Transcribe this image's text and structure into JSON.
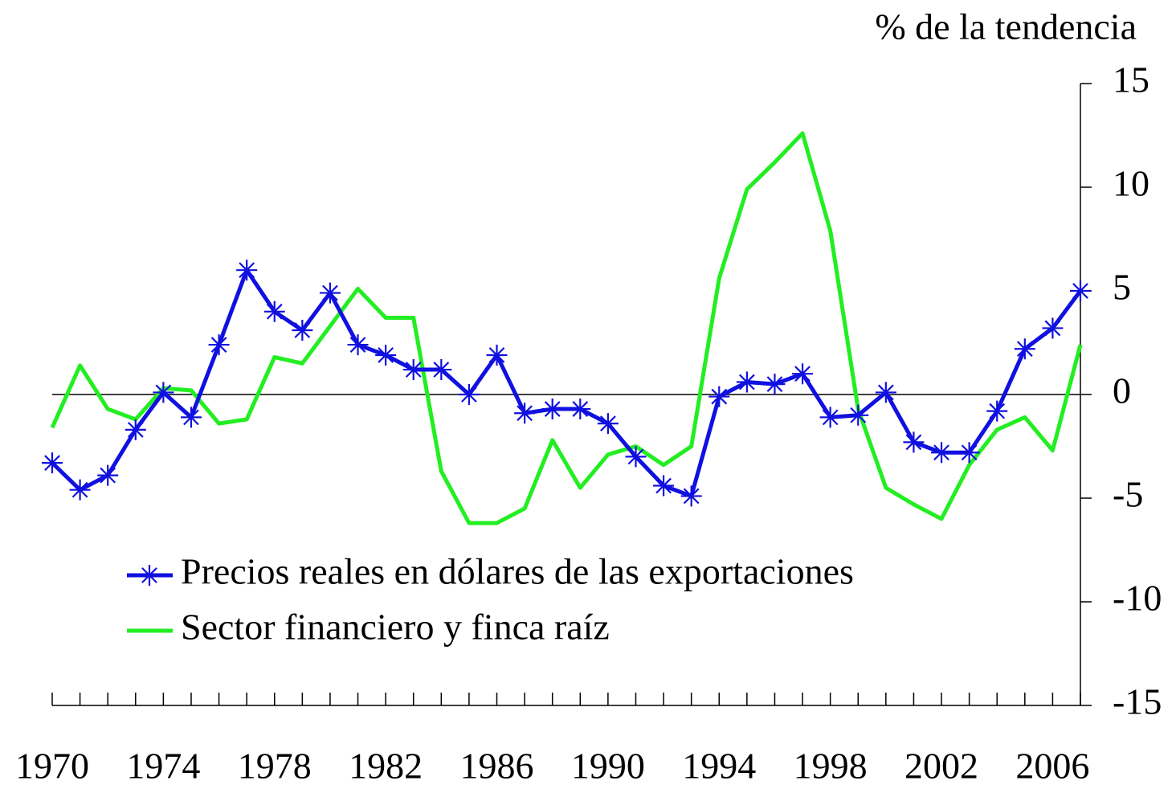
{
  "chart_data": {
    "type": "line",
    "y_axis_label": "% de la tendencia",
    "x": [
      1970,
      1971,
      1972,
      1973,
      1974,
      1975,
      1976,
      1977,
      1978,
      1979,
      1980,
      1981,
      1982,
      1983,
      1984,
      1985,
      1986,
      1987,
      1988,
      1989,
      1990,
      1991,
      1992,
      1993,
      1994,
      1995,
      1996,
      1997,
      1998,
      1999,
      2000,
      2001,
      2002,
      2003,
      2004,
      2005,
      2006,
      2007
    ],
    "series": [
      {
        "name": "Precios reales en dólares de las exportaciones",
        "color": "#1010e0",
        "marker": "asterisk",
        "values": [
          -3.3,
          -4.6,
          -3.9,
          -1.7,
          0.1,
          -1.1,
          2.4,
          6.0,
          4.0,
          3.1,
          4.9,
          2.4,
          1.9,
          1.2,
          1.2,
          0.0,
          1.9,
          -0.9,
          -0.7,
          -0.7,
          -1.4,
          -3.0,
          -4.4,
          -4.9,
          -0.1,
          0.6,
          0.5,
          1.0,
          -1.1,
          -1.0,
          0.1,
          -2.3,
          -2.8,
          -2.8,
          -0.8,
          2.2,
          3.2,
          5.0
        ]
      },
      {
        "name": "Sector financiero  y finca raíz",
        "color": "#22ee22",
        "values": [
          -1.6,
          1.4,
          -0.7,
          -1.2,
          0.3,
          0.2,
          -1.4,
          -1.2,
          1.8,
          1.5,
          3.3,
          5.1,
          3.7,
          3.7,
          -3.7,
          -6.2,
          -6.2,
          -5.5,
          -2.2,
          -4.5,
          -2.9,
          -2.5,
          -3.4,
          -2.5,
          5.6,
          9.9,
          11.2,
          12.6,
          7.9,
          -0.7,
          -4.5,
          -5.3,
          -6.0,
          -3.4,
          -1.7,
          -1.1,
          -2.7,
          2.4
        ]
      }
    ],
    "xlim": [
      1970,
      2007
    ],
    "xticks": [
      1970,
      1974,
      1978,
      1982,
      1986,
      1990,
      1994,
      1998,
      2002,
      2006
    ],
    "ylim": [
      -15,
      15
    ],
    "yticks": [
      15,
      10,
      5,
      0,
      -5,
      -10,
      -15
    ],
    "zero_line": true,
    "legend": "lower left"
  }
}
